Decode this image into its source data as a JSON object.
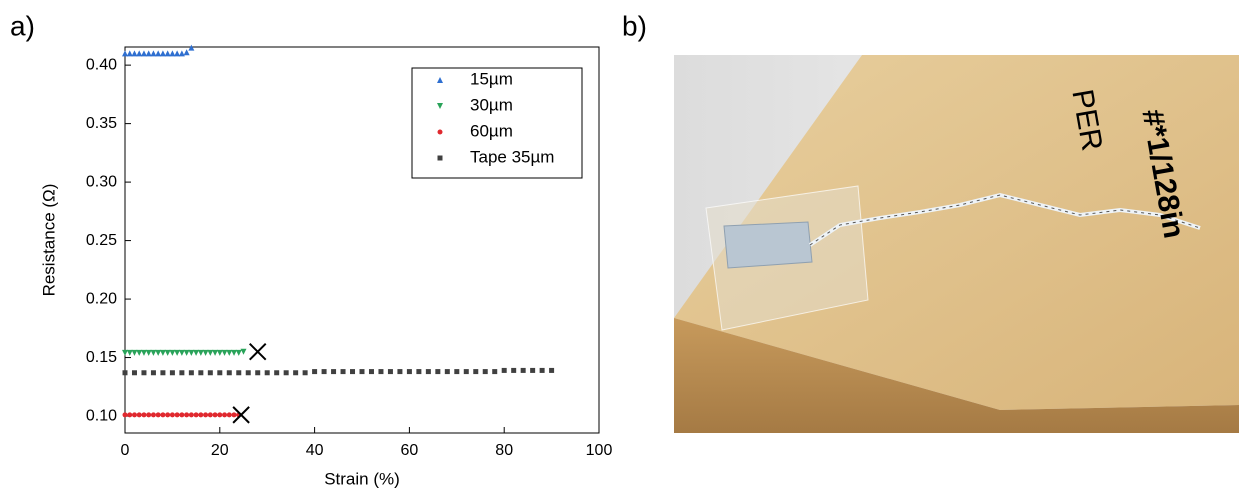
{
  "panels": [
    "a)",
    "b)"
  ],
  "chart_data": {
    "type": "scatter",
    "x_label": "Strain (%)",
    "y_label": "Resistance (Ω)",
    "xlim": [
      0,
      100
    ],
    "ylim": [
      0.0855,
      0.4155
    ],
    "xticks": [
      0,
      20,
      40,
      60,
      80,
      100
    ],
    "yticks": [
      {
        "value": 0.1,
        "label": "0.10"
      },
      {
        "value": 0.15,
        "label": "0.15"
      },
      {
        "value": 0.2,
        "label": "0.20"
      },
      {
        "value": 0.25,
        "label": "0.25"
      },
      {
        "value": 0.3,
        "label": "0.30"
      },
      {
        "value": 0.35,
        "label": "0.35"
      },
      {
        "value": 0.4,
        "label": "0.40"
      }
    ],
    "legend": "upper-right",
    "series": [
      {
        "name": "15µm",
        "color": "#2f6fd0",
        "marker": "triangle-up",
        "x": [
          0,
          1,
          2,
          3,
          4,
          5,
          6,
          7,
          8,
          9,
          10,
          11,
          12,
          13,
          14
        ],
        "values": [
          0.41,
          0.41,
          0.41,
          0.41,
          0.41,
          0.41,
          0.41,
          0.41,
          0.41,
          0.41,
          0.41,
          0.41,
          0.41,
          0.411,
          0.415
        ]
      },
      {
        "name": "30µm",
        "color": "#2aa35a",
        "marker": "triangle-down",
        "x": [
          0,
          1,
          2,
          3,
          4,
          5,
          6,
          7,
          8,
          9,
          10,
          11,
          12,
          13,
          14,
          15,
          16,
          17,
          18,
          19,
          20,
          21,
          22,
          23,
          24,
          25
        ],
        "values": [
          0.154,
          0.154,
          0.154,
          0.154,
          0.154,
          0.154,
          0.154,
          0.154,
          0.154,
          0.154,
          0.154,
          0.154,
          0.154,
          0.154,
          0.154,
          0.154,
          0.154,
          0.154,
          0.154,
          0.154,
          0.154,
          0.154,
          0.154,
          0.154,
          0.154,
          0.155
        ]
      },
      {
        "name": "60µm",
        "color": "#e0292f",
        "marker": "circle",
        "x": [
          0,
          1,
          2,
          3,
          4,
          5,
          6,
          7,
          8,
          9,
          10,
          11,
          12,
          13,
          14,
          15,
          16,
          17,
          18,
          19,
          20,
          21,
          22,
          23,
          24
        ],
        "values": [
          0.101,
          0.101,
          0.101,
          0.101,
          0.101,
          0.101,
          0.101,
          0.101,
          0.101,
          0.101,
          0.101,
          0.101,
          0.101,
          0.101,
          0.101,
          0.101,
          0.101,
          0.101,
          0.101,
          0.101,
          0.101,
          0.101,
          0.101,
          0.101,
          0.101
        ]
      },
      {
        "name": "Tape 35µm",
        "color": "#404040",
        "marker": "square",
        "x": [
          0,
          2,
          4,
          6,
          8,
          10,
          12,
          14,
          16,
          18,
          20,
          22,
          24,
          26,
          28,
          30,
          32,
          34,
          36,
          38,
          40,
          42,
          44,
          46,
          48,
          50,
          52,
          54,
          56,
          58,
          60,
          62,
          64,
          66,
          68,
          70,
          72,
          74,
          76,
          78,
          80,
          82,
          84,
          86,
          88,
          90
        ],
        "values": [
          0.137,
          0.137,
          0.137,
          0.137,
          0.137,
          0.137,
          0.137,
          0.137,
          0.137,
          0.137,
          0.137,
          0.137,
          0.137,
          0.137,
          0.137,
          0.137,
          0.137,
          0.137,
          0.137,
          0.137,
          0.138,
          0.138,
          0.138,
          0.138,
          0.138,
          0.138,
          0.138,
          0.138,
          0.138,
          0.138,
          0.138,
          0.138,
          0.138,
          0.138,
          0.138,
          0.138,
          0.138,
          0.138,
          0.138,
          0.138,
          0.139,
          0.139,
          0.139,
          0.139,
          0.139,
          0.139
        ]
      }
    ],
    "failures": [
      {
        "x": 28,
        "y": 0.155
      },
      {
        "x": 24.5,
        "y": 0.101
      }
    ]
  },
  "photo": {
    "texts": [
      "PER",
      "#*1/128in"
    ]
  }
}
